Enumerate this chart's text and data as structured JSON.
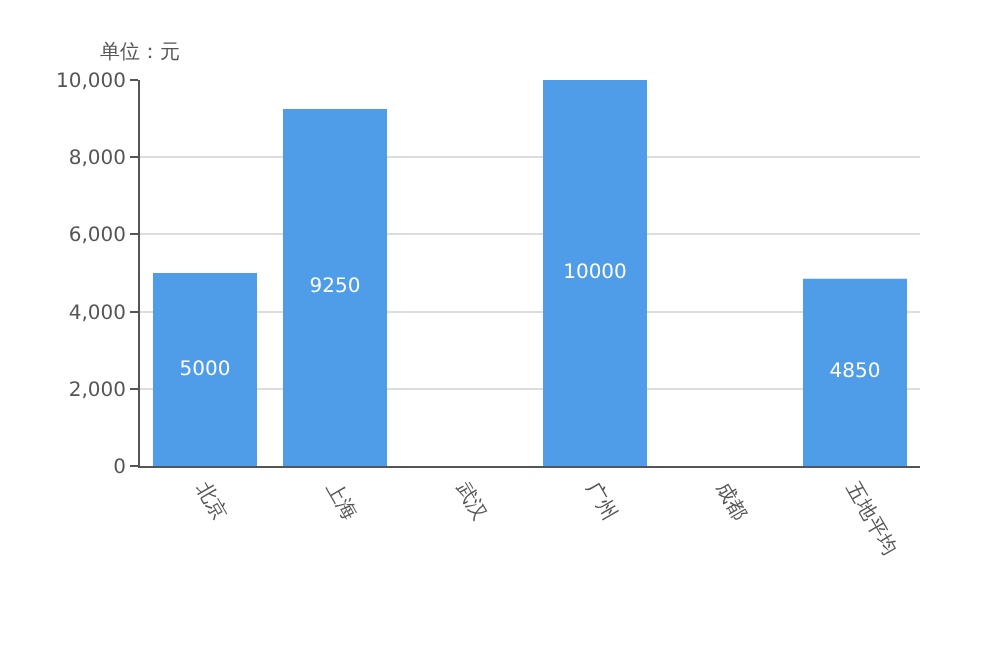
{
  "chart_data": {
    "type": "bar",
    "ylabel": "单位：元",
    "categories": [
      "北京",
      "上海",
      "武汉",
      "广州",
      "成都",
      "五地平均"
    ],
    "values": [
      5000,
      9250,
      0,
      10000,
      0,
      4850
    ],
    "value_labels": [
      "5000",
      "9250",
      null,
      "10000",
      null,
      "4850"
    ],
    "color": "#4f9de8",
    "ylim": [
      0,
      10000
    ],
    "yticks": [
      {
        "value": 0,
        "label": "0"
      },
      {
        "value": 2000,
        "label": "2,000"
      },
      {
        "value": 4000,
        "label": "4,000"
      },
      {
        "value": 6000,
        "label": "6,000"
      },
      {
        "value": 8000,
        "label": "8,000"
      },
      {
        "value": 10000,
        "label": "10,000"
      }
    ],
    "grid": "y"
  }
}
